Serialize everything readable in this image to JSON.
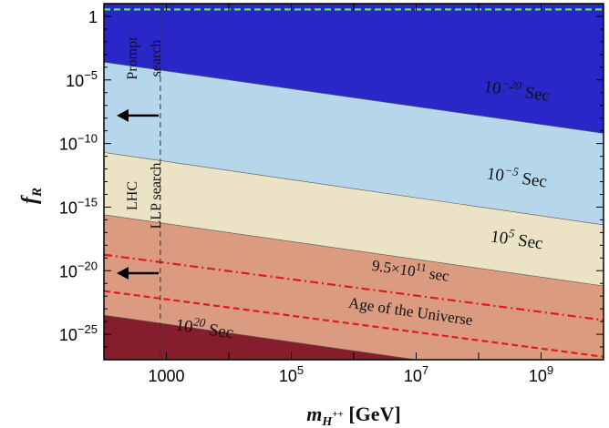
{
  "chart_data": {
    "type": "area",
    "title": "",
    "xlabel": {
      "main": "m",
      "sub": "H",
      "sup": "++",
      "unit": " [GeV]"
    },
    "ylabel": {
      "main": "f",
      "sub": "R"
    },
    "xscale": "log",
    "yscale": "log",
    "xlim": [
      100,
      10000000000
    ],
    "ylim": [
      1e-27,
      10
    ],
    "grid": false,
    "x_ticks": [
      {
        "value": 1000,
        "label": "1000"
      },
      {
        "value": 100000,
        "base": "10",
        "exp": "5"
      },
      {
        "value": 10000000,
        "base": "10",
        "exp": "7"
      },
      {
        "value": 1000000000,
        "base": "10",
        "exp": "9"
      }
    ],
    "y_ticks": [
      {
        "value": 1,
        "base": "1",
        "exp": ""
      },
      {
        "value": 1e-05,
        "base": "10",
        "exp": "−5"
      },
      {
        "value": 1e-10,
        "base": "10",
        "exp": "−10"
      },
      {
        "value": 1e-15,
        "base": "10",
        "exp": "−15"
      },
      {
        "value": 1e-20,
        "base": "10",
        "exp": "−20"
      },
      {
        "value": 1e-25,
        "base": "10",
        "exp": "−25"
      }
    ],
    "boundaries": {
      "b20": {
        "log10_f_at_x100": -3.6,
        "log10_f_at_x1e10": -9.2
      },
      "b5": {
        "log10_f_at_x100": -10.7,
        "log10_f_at_x1e10": -16.4
      },
      "b_5": {
        "log10_f_at_x100": -15.6,
        "log10_f_at_x1e10": -21.2
      },
      "b_20": {
        "log10_f_at_x100": -23.5,
        "log10_f_at_x1e10": -29.1
      }
    },
    "regions": [
      {
        "upper": "top",
        "lower": "b20",
        "color": "#2a27c8"
      },
      {
        "upper": "b20",
        "lower": "b5",
        "color": "#b6d6ec"
      },
      {
        "upper": "b5",
        "lower": "b_5",
        "color": "#ece3c7"
      },
      {
        "upper": "b_5",
        "lower": "b_20",
        "color": "#da9b80"
      },
      {
        "upper": "b_20",
        "lower": "bottom",
        "color": "#861d2c"
      }
    ],
    "region_labels": [
      {
        "base": "10",
        "exp": "−20",
        "unit": " Sec",
        "x_log": 8.6,
        "y_log": -6.3,
        "color": "#111111"
      },
      {
        "base": "10",
        "exp": "−5",
        "unit": " Sec",
        "x_log": 8.6,
        "y_log": -13.1,
        "color": "#111111"
      },
      {
        "base": "10",
        "exp": "5",
        "unit": " Sec",
        "x_log": 8.6,
        "y_log": -18.0,
        "color": "#111111"
      },
      {
        "base": "10",
        "exp": "20",
        "unit": " Sec",
        "x_log": 3.6,
        "y_log": -25.0,
        "color": "#111111"
      }
    ],
    "series": [
      {
        "name": "9.5×10¹¹ sec",
        "style": "dashdot",
        "color": "#e21a1a",
        "x": [
          100,
          10000000000
        ],
        "y": [
          1.8e-19,
          1.3e-24
        ]
      },
      {
        "name": "Age of the Universe",
        "style": "dashed",
        "color": "#e21a1a",
        "x": [
          100,
          10000000000
        ],
        "y": [
          2.5e-22,
          1.7e-27
        ]
      },
      {
        "name": "",
        "style": "dashed",
        "color": "#55ee55",
        "x": [
          100,
          10000000000
        ],
        "y": [
          3.5,
          3.5
        ]
      }
    ],
    "line_labels": [
      {
        "base": "9.5×10",
        "exp": "11",
        "unit": " sec",
        "x_log": 6.9,
        "y_log": -20.4
      },
      {
        "text": "Age of the Universe",
        "x_log": 6.9,
        "y_log": -23.6
      }
    ],
    "vertical_lines": [
      {
        "x": 800,
        "style": "dashed",
        "color": "#333333"
      }
    ],
    "annotations": [
      {
        "line1": "Prompt",
        "line2": "search",
        "rotation": -90
      },
      {
        "line1": "LHC",
        "line2": "LLP  search",
        "rotation": -90
      }
    ],
    "arrows": [
      {
        "direction": "left",
        "y_log": -7.8
      },
      {
        "direction": "left",
        "y_log": -20.2
      }
    ]
  }
}
